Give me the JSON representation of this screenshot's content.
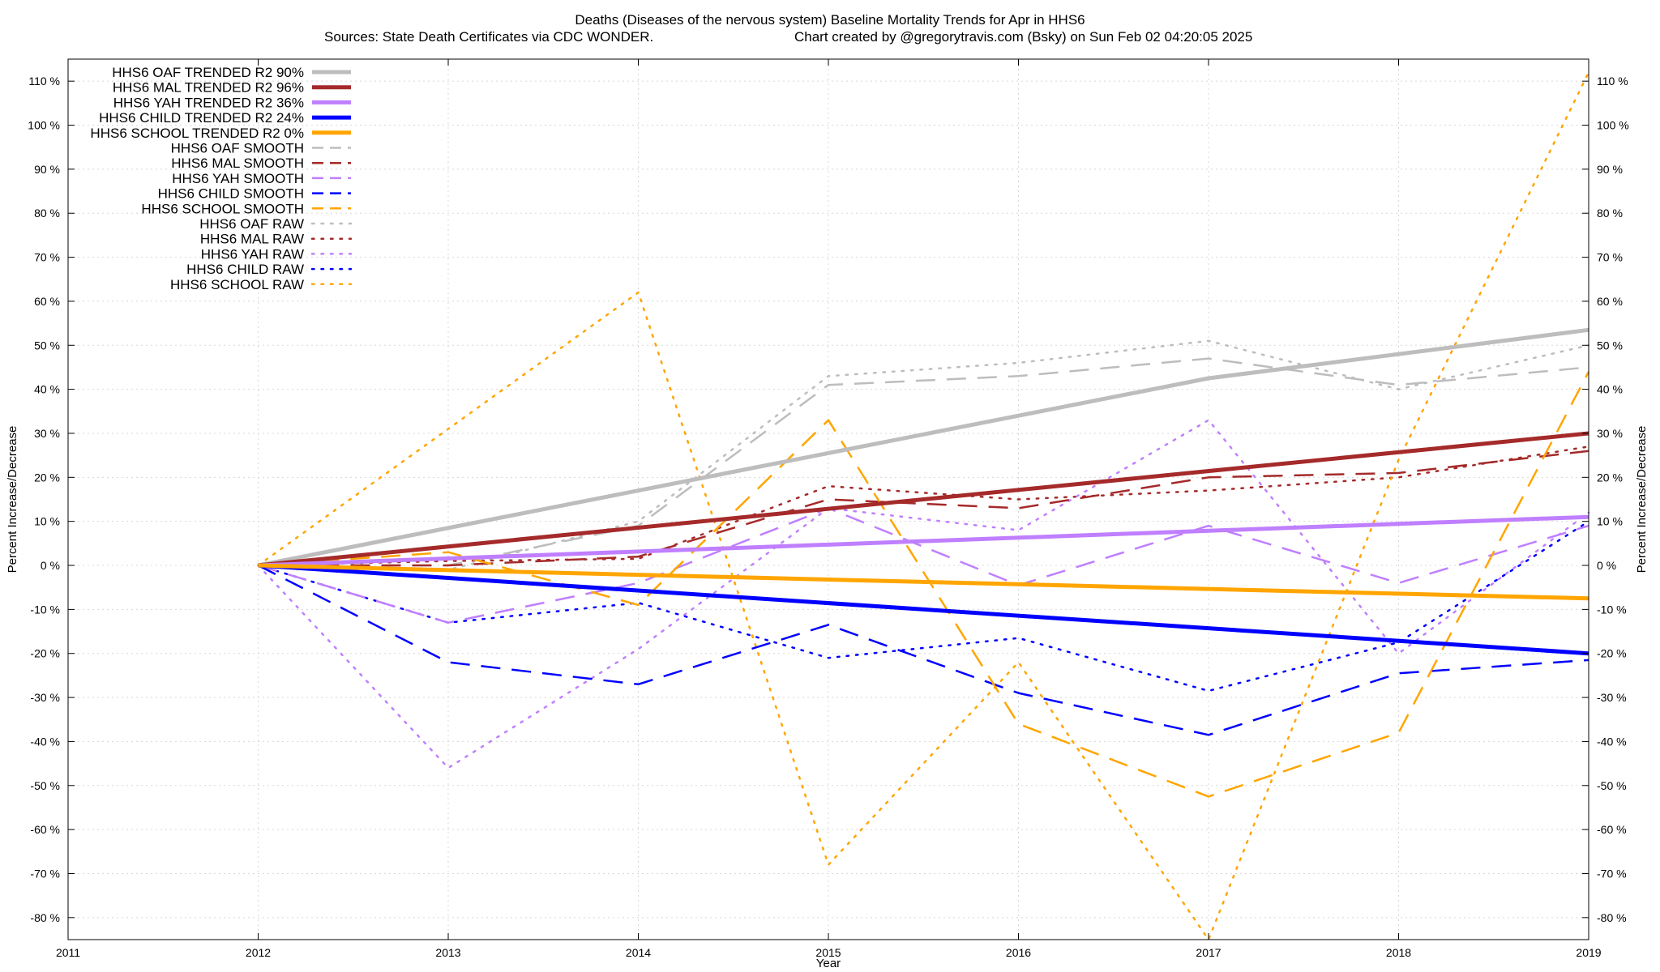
{
  "chart_data": {
    "type": "line",
    "title": "Deaths (Diseases of the nervous system)  Baseline Mortality Trends for Apr in HHS6",
    "subtitle_left": "Sources: State Death Certificates via CDC WONDER.",
    "subtitle_right": "Chart created by @gregorytravis.com (Bsky) on Sun Feb 02 04:20:05 2025",
    "xlabel": "Year",
    "ylabel": "Percent Increase/Decrease",
    "xlim": [
      2011,
      2019
    ],
    "ylim": [
      -85,
      115
    ],
    "x_ticks": [
      2011,
      2012,
      2013,
      2014,
      2015,
      2016,
      2017,
      2018,
      2019
    ],
    "y_ticks": [
      -80,
      -70,
      -60,
      -50,
      -40,
      -30,
      -20,
      -10,
      0,
      10,
      20,
      30,
      40,
      50,
      60,
      70,
      80,
      90,
      100,
      110
    ],
    "y_tick_suffix": " %",
    "grid": true,
    "legend_position": "top-left",
    "colors": {
      "oaf": "#bdbdbd",
      "mal": "#a52a2a",
      "yah": "#bf7fff",
      "child": "#0000ff",
      "school": "#ffa500"
    },
    "series": [
      {
        "name": "HHS6 OAF TRENDED R2  90%",
        "group": "oaf",
        "style": "solid",
        "x": [
          2012,
          2017,
          2019
        ],
        "y": [
          0,
          42.5,
          53.5
        ]
      },
      {
        "name": "HHS6 MAL TRENDED R2  96%",
        "group": "mal",
        "style": "solid",
        "x": [
          2012,
          2019
        ],
        "y": [
          0,
          30
        ]
      },
      {
        "name": "HHS6 YAH TRENDED R2  36%",
        "group": "yah",
        "style": "solid",
        "x": [
          2012,
          2019
        ],
        "y": [
          0,
          11
        ]
      },
      {
        "name": "HHS6 CHILD TRENDED R2  24%",
        "group": "child",
        "style": "solid",
        "x": [
          2012,
          2019
        ],
        "y": [
          0,
          -20
        ]
      },
      {
        "name": "HHS6 SCHOOL TRENDED R2   0%",
        "group": "school",
        "style": "solid",
        "x": [
          2012,
          2019
        ],
        "y": [
          0,
          -7.5
        ]
      },
      {
        "name": "HHS6 OAF SMOOTH",
        "group": "oaf",
        "style": "dashed",
        "x": [
          2012,
          2013,
          2014,
          2015,
          2016,
          2017,
          2018,
          2019
        ],
        "y": [
          0,
          0,
          9,
          41,
          43,
          47,
          41,
          45
        ]
      },
      {
        "name": "HHS6 MAL SMOOTH",
        "group": "mal",
        "style": "dashed",
        "x": [
          2012,
          2013,
          2014,
          2015,
          2016,
          2017,
          2018,
          2019
        ],
        "y": [
          0,
          0,
          2,
          15,
          13,
          20,
          21,
          26
        ]
      },
      {
        "name": "HHS6 YAH SMOOTH",
        "group": "yah",
        "style": "dashed",
        "x": [
          2012,
          2013,
          2014,
          2015,
          2016,
          2017,
          2018,
          2019
        ],
        "y": [
          0,
          -13,
          -4,
          13,
          -4.5,
          9,
          -4,
          9
        ]
      },
      {
        "name": "HHS6 CHILD SMOOTH",
        "group": "child",
        "style": "dashed",
        "x": [
          2012,
          2013,
          2014,
          2015,
          2016,
          2017,
          2018,
          2019
        ],
        "y": [
          0,
          -22,
          -27,
          -13.5,
          -29,
          -38.5,
          -24.5,
          -21.5
        ]
      },
      {
        "name": "HHS6 SCHOOL SMOOTH",
        "group": "school",
        "style": "dashed",
        "x": [
          2012,
          2013,
          2014,
          2015,
          2016,
          2017,
          2018,
          2019
        ],
        "y": [
          0,
          3,
          -9,
          33,
          -36,
          -52.5,
          -38,
          44
        ]
      },
      {
        "name": "HHS6 OAF RAW",
        "group": "oaf",
        "style": "dotted",
        "x": [
          2012,
          2013,
          2014,
          2015,
          2016,
          2017,
          2018,
          2019
        ],
        "y": [
          0,
          -1,
          10,
          43,
          46,
          51,
          40,
          50
        ]
      },
      {
        "name": "HHS6 MAL RAW",
        "group": "mal",
        "style": "dotted",
        "x": [
          2012,
          2013,
          2014,
          2015,
          2016,
          2017,
          2018,
          2019
        ],
        "y": [
          0,
          1,
          1.5,
          18,
          15,
          17,
          20,
          27
        ]
      },
      {
        "name": "HHS6 YAH RAW",
        "group": "yah",
        "style": "dotted",
        "x": [
          2012,
          2013,
          2014,
          2015,
          2016,
          2017,
          2018,
          2019
        ],
        "y": [
          0,
          -46,
          -19,
          13,
          8,
          33,
          -20,
          12
        ]
      },
      {
        "name": "HHS6 CHILD RAW",
        "group": "child",
        "style": "dotted",
        "x": [
          2012,
          2013,
          2014,
          2015,
          2016,
          2017,
          2018,
          2019
        ],
        "y": [
          0,
          -13,
          -8.5,
          -21,
          -16.5,
          -28.5,
          -17.5,
          10
        ]
      },
      {
        "name": "HHS6 SCHOOL RAW",
        "group": "school",
        "style": "dotted",
        "x": [
          2012,
          2013,
          2014,
          2015,
          2016,
          2017,
          2018,
          2019
        ],
        "y": [
          0,
          31,
          62,
          -68,
          -22,
          -85,
          24,
          112
        ]
      }
    ]
  }
}
